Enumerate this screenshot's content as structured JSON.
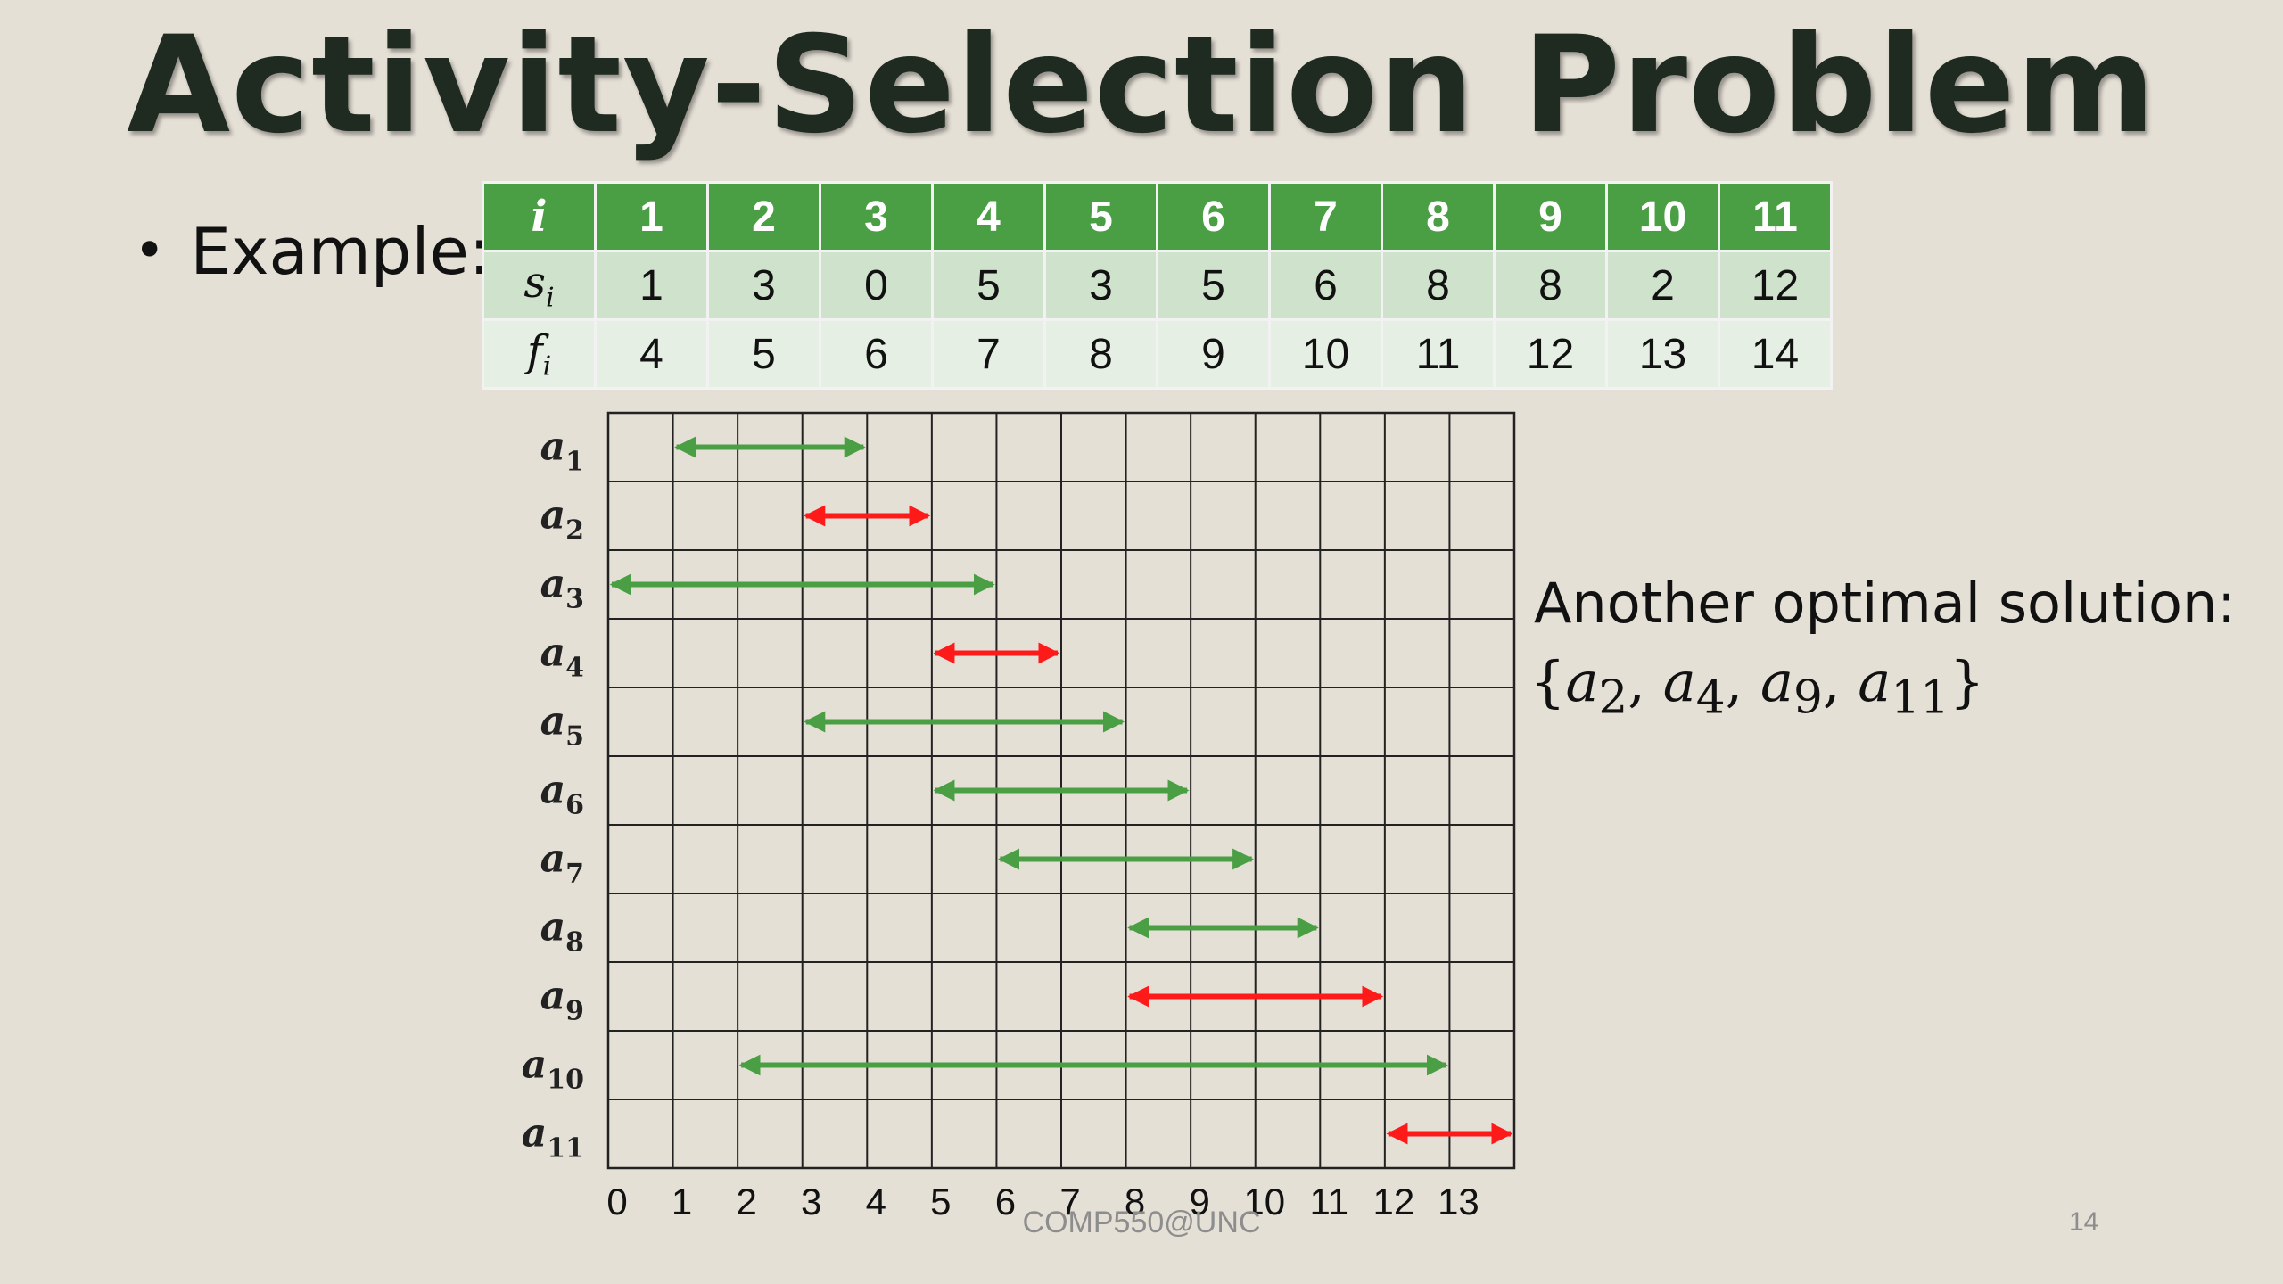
{
  "title": "Activity-Selection Problem",
  "bullet": "Example:",
  "table": {
    "header_label": "i",
    "s_label": "s",
    "f_label": "f",
    "label_sub": "i",
    "i": [
      "1",
      "2",
      "3",
      "4",
      "5",
      "6",
      "7",
      "8",
      "9",
      "10",
      "11"
    ],
    "s": [
      "1",
      "3",
      "0",
      "5",
      "3",
      "5",
      "6",
      "8",
      "8",
      "2",
      "12"
    ],
    "f": [
      "4",
      "5",
      "6",
      "7",
      "8",
      "9",
      "10",
      "11",
      "12",
      "13",
      "14"
    ]
  },
  "chart_data": {
    "type": "interval",
    "x_ticks": [
      "0",
      "1",
      "2",
      "3",
      "4",
      "5",
      "6",
      "7",
      "8",
      "9",
      "10",
      "11",
      "12",
      "13"
    ],
    "xlim": [
      0,
      14
    ],
    "grid": true,
    "activities": [
      {
        "label": "a",
        "sub": "1",
        "start": 1,
        "finish": 4,
        "color": "#4a9e44"
      },
      {
        "label": "a",
        "sub": "2",
        "start": 3,
        "finish": 5,
        "color": "#ff1a1a"
      },
      {
        "label": "a",
        "sub": "3",
        "start": 0,
        "finish": 6,
        "color": "#4a9e44"
      },
      {
        "label": "a",
        "sub": "4",
        "start": 5,
        "finish": 7,
        "color": "#ff1a1a"
      },
      {
        "label": "a",
        "sub": "5",
        "start": 3,
        "finish": 8,
        "color": "#4a9e44"
      },
      {
        "label": "a",
        "sub": "6",
        "start": 5,
        "finish": 9,
        "color": "#4a9e44"
      },
      {
        "label": "a",
        "sub": "7",
        "start": 6,
        "finish": 10,
        "color": "#4a9e44"
      },
      {
        "label": "a",
        "sub": "8",
        "start": 8,
        "finish": 11,
        "color": "#4a9e44"
      },
      {
        "label": "a",
        "sub": "9",
        "start": 8,
        "finish": 12,
        "color": "#ff1a1a"
      },
      {
        "label": "a",
        "sub": "10",
        "start": 2,
        "finish": 13,
        "color": "#4a9e44"
      },
      {
        "label": "a",
        "sub": "11",
        "start": 12,
        "finish": 14,
        "color": "#ff1a1a"
      }
    ]
  },
  "solution": {
    "heading": "Another optimal solution:",
    "open": "{",
    "close": "}",
    "sep": ", ",
    "items": [
      {
        "label": "a",
        "sub": "2"
      },
      {
        "label": "a",
        "sub": "4"
      },
      {
        "label": "a",
        "sub": "9"
      },
      {
        "label": "a",
        "sub": "11"
      }
    ]
  },
  "footer": "COMP550@UNC",
  "page_number": "14"
}
